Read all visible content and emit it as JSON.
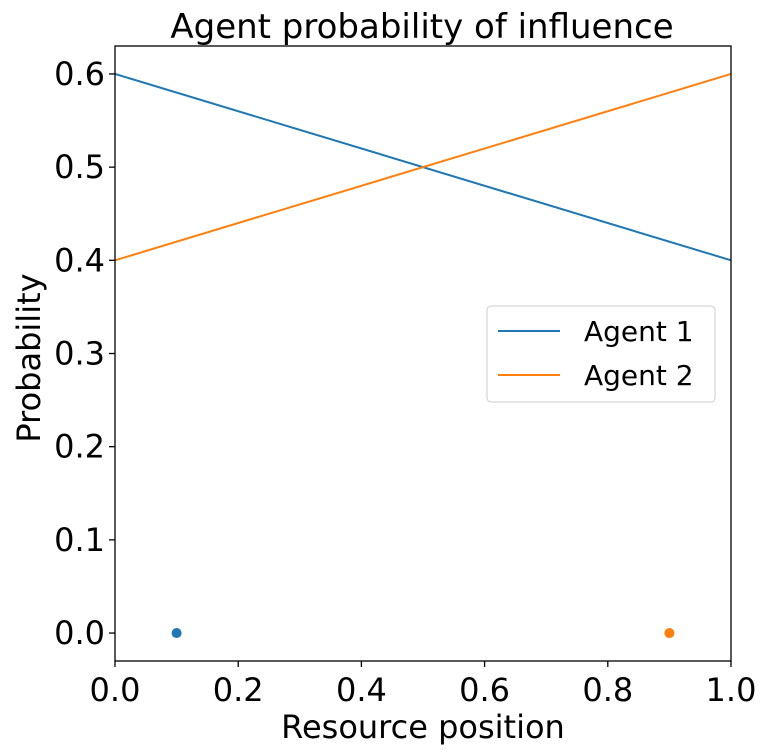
{
  "chart_data": {
    "type": "line",
    "title": "Agent probability of influence",
    "xlabel": "Resource position",
    "ylabel": "Probability",
    "xlim": [
      0.0,
      1.0
    ],
    "ylim": [
      -0.03,
      0.63
    ],
    "xticks": [
      0.0,
      0.2,
      0.4,
      0.6,
      0.8,
      1.0
    ],
    "xtick_labels": [
      "0.0",
      "0.2",
      "0.4",
      "0.6",
      "0.8",
      "1.0"
    ],
    "yticks": [
      0.0,
      0.1,
      0.2,
      0.3,
      0.4,
      0.5,
      0.6
    ],
    "ytick_labels": [
      "0.0",
      "0.1",
      "0.2",
      "0.3",
      "0.4",
      "0.5",
      "0.6"
    ],
    "grid": false,
    "legend_position": "center-right",
    "series": [
      {
        "name": "Agent 1",
        "color": "#1f77b4",
        "x": [
          0.0,
          1.0
        ],
        "y": [
          0.6,
          0.4
        ]
      },
      {
        "name": "Agent 2",
        "color": "#ff7f0e",
        "x": [
          0.0,
          1.0
        ],
        "y": [
          0.4,
          0.6
        ]
      }
    ],
    "points": [
      {
        "x": 0.1,
        "y": 0.0,
        "color": "#1f77b4"
      },
      {
        "x": 0.9,
        "y": 0.0,
        "color": "#ff7f0e"
      }
    ]
  }
}
